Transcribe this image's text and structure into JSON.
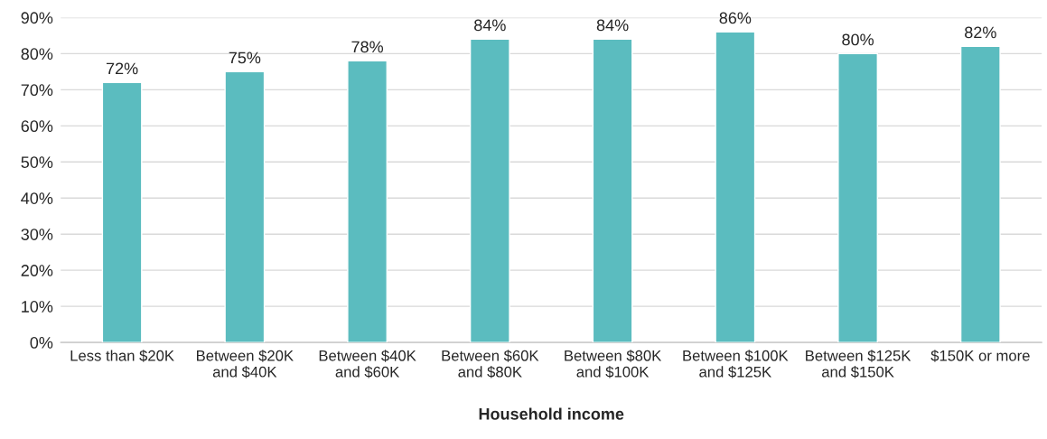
{
  "chart_data": {
    "type": "bar",
    "xlabel": "Household income",
    "categories": [
      "Less than $20K",
      "Between $20K\nand $40K",
      "Between $40K\nand $60K",
      "Between $60K\nand $80K",
      "Between $80K\nand $100K",
      "Between $100K\nand $125K",
      "Between $125K\nand $150K",
      "$150K or more"
    ],
    "values": [
      72,
      75,
      78,
      84,
      84,
      86,
      80,
      82
    ],
    "value_labels": [
      "72%",
      "75%",
      "78%",
      "84%",
      "84%",
      "86%",
      "80%",
      "82%"
    ],
    "color": "#5bbcbf",
    "ylim": [
      0,
      90
    ],
    "yticks": [
      {
        "value": 0,
        "label": "0%"
      },
      {
        "value": 10,
        "label": "10%"
      },
      {
        "value": 20,
        "label": "20%"
      },
      {
        "value": 30,
        "label": "30%"
      },
      {
        "value": 40,
        "label": "40%"
      },
      {
        "value": 50,
        "label": "50%"
      },
      {
        "value": 60,
        "label": "60%"
      },
      {
        "value": 70,
        "label": "70%"
      },
      {
        "value": 80,
        "label": "80%"
      },
      {
        "value": 90,
        "label": "90%"
      }
    ],
    "grid": "y"
  }
}
